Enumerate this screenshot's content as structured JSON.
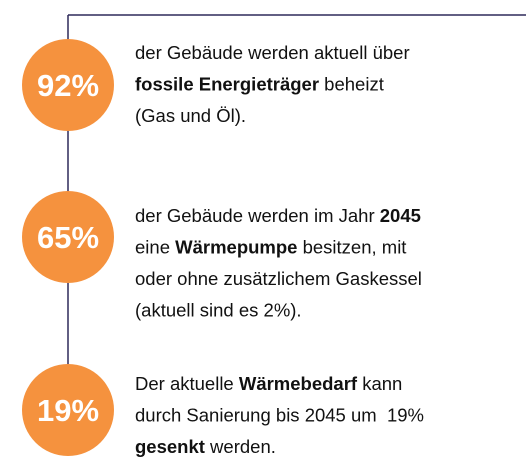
{
  "items": [
    {
      "figure": "92%",
      "lines": [
        [
          {
            "text": "der Gebäude werden aktuell über"
          }
        ],
        [
          {
            "text": "fossile Energieträger",
            "bold": true
          },
          {
            "text": " beheizt"
          }
        ],
        [
          {
            "text": "(Gas und Öl)."
          }
        ]
      ]
    },
    {
      "figure": "65%",
      "lines": [
        [
          {
            "text": "der Gebäude werden im Jahr "
          },
          {
            "text": "2045",
            "bold": true
          }
        ],
        [
          {
            "text": "eine "
          },
          {
            "text": "Wärmepumpe",
            "bold": true
          },
          {
            "text": " besitzen, mit"
          }
        ],
        [
          {
            "text": "oder ohne zusätzlichem Gaskessel"
          }
        ],
        [
          {
            "text": "(aktuell sind es 2%)."
          }
        ]
      ]
    },
    {
      "figure": "19%",
      "lines": [
        [
          {
            "text": "Der aktuelle "
          },
          {
            "text": "Wärmebedarf",
            "bold": true
          },
          {
            "text": " kann"
          }
        ],
        [
          {
            "text": "durch Sanierung bis 2045 um  19%"
          }
        ],
        [
          {
            "text": "gesenkt",
            "bold": true
          },
          {
            "text": " werden."
          }
        ]
      ]
    }
  ]
}
